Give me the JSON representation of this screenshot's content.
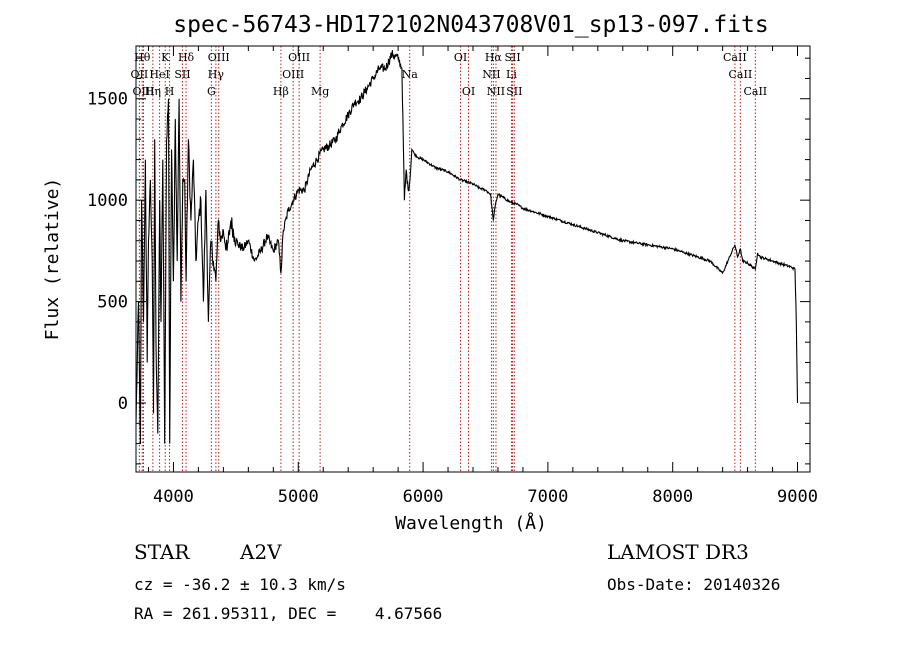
{
  "chart_data": {
    "type": "line",
    "title": "spec-56743-HD172102N043708V01_sp13-097.fits",
    "xlabel": "Wavelength (Å)",
    "ylabel": "Flux (relative)",
    "xlim": [
      3700,
      9100
    ],
    "ylim": [
      -340,
      1760
    ],
    "xticks": [
      4000,
      5000,
      6000,
      7000,
      8000,
      9000
    ],
    "yticks": [
      0,
      500,
      1000,
      1500
    ],
    "grid": false,
    "series": [
      {
        "name": "flux",
        "x": [
          3700,
          3720,
          3735,
          3745,
          3760,
          3775,
          3790,
          3800,
          3815,
          3830,
          3840,
          3850,
          3860,
          3875,
          3890,
          3900,
          3915,
          3930,
          3945,
          3960,
          3970,
          3985,
          4000,
          4015,
          4030,
          4045,
          4060,
          4075,
          4090,
          4101,
          4120,
          4140,
          4160,
          4180,
          4200,
          4220,
          4240,
          4260,
          4280,
          4300,
          4320,
          4340,
          4360,
          4380,
          4400,
          4430,
          4460,
          4490,
          4520,
          4560,
          4600,
          4650,
          4700,
          4750,
          4800,
          4840,
          4861,
          4880,
          4920,
          4960,
          5000,
          5050,
          5100,
          5150,
          5200,
          5250,
          5300,
          5350,
          5400,
          5450,
          5500,
          5550,
          5600,
          5650,
          5700,
          5750,
          5800,
          5830,
          5850,
          5865,
          5880,
          5895,
          5910,
          5930,
          5960,
          6000,
          6050,
          6100,
          6150,
          6200,
          6250,
          6300,
          6350,
          6400,
          6450,
          6500,
          6540,
          6563,
          6580,
          6600,
          6650,
          6700,
          6750,
          6800,
          6850,
          6900,
          6950,
          7000,
          7100,
          7200,
          7300,
          7400,
          7500,
          7600,
          7700,
          7800,
          7900,
          8000,
          8100,
          8200,
          8300,
          8400,
          8498,
          8520,
          8542,
          8560,
          8600,
          8662,
          8680,
          8700,
          8750,
          8800,
          8850,
          8900,
          8950,
          8980,
          8990,
          9000
        ],
        "y": [
          -100,
          500,
          -200,
          1000,
          400,
          1200,
          200,
          800,
          1100,
          700,
          -50,
          1300,
          300,
          -150,
          1000,
          400,
          1200,
          -200,
          1300,
          1500,
          -200,
          1250,
          600,
          1400,
          700,
          1500,
          500,
          1100,
          1100,
          600,
          1300,
          900,
          1200,
          700,
          900,
          1000,
          500,
          1050,
          400,
          800,
          700,
          600,
          900,
          800,
          850,
          750,
          900,
          820,
          780,
          760,
          800,
          700,
          750,
          820,
          750,
          800,
          640,
          850,
          950,
          1000,
          1050,
          1050,
          1150,
          1200,
          1250,
          1270,
          1300,
          1370,
          1420,
          1480,
          1500,
          1550,
          1600,
          1650,
          1650,
          1720,
          1700,
          1650,
          1000,
          1150,
          1050,
          1100,
          1250,
          1230,
          1210,
          1200,
          1180,
          1160,
          1150,
          1140,
          1120,
          1100,
          1090,
          1080,
          1060,
          1050,
          1030,
          900,
          980,
          1030,
          1010,
          990,
          980,
          960,
          950,
          940,
          930,
          920,
          900,
          880,
          860,
          840,
          820,
          800,
          790,
          780,
          770,
          760,
          740,
          720,
          700,
          640,
          780,
          720,
          760,
          700,
          690,
          660,
          740,
          720,
          710,
          700,
          690,
          680,
          670,
          660,
          400,
          0
        ]
      }
    ],
    "lines": [
      {
        "name": "OII",
        "x": 3727,
        "row": 2
      },
      {
        "name": "Hθ",
        "x": 3750,
        "row": 1
      },
      {
        "name": "OIII",
        "x": 3760,
        "row": 3
      },
      {
        "name": "Hη",
        "x": 3835,
        "row": 3
      },
      {
        "name": "HeI",
        "x": 3889,
        "row": 2
      },
      {
        "name": "K",
        "x": 3934,
        "row": 1
      },
      {
        "name": "H",
        "x": 3969,
        "row": 3
      },
      {
        "name": "SII",
        "x": 4072,
        "row": 2
      },
      {
        "name": "Hδ",
        "x": 4101,
        "row": 1
      },
      {
        "name": "G",
        "x": 4304,
        "row": 3
      },
      {
        "name": "Hγ",
        "x": 4340,
        "row": 2
      },
      {
        "name": "OIII",
        "x": 4363,
        "row": 1
      },
      {
        "name": "Hβ",
        "x": 4861,
        "row": 3
      },
      {
        "name": "OIII",
        "x": 4959,
        "row": 2
      },
      {
        "name": "OIII",
        "x": 5007,
        "row": 1
      },
      {
        "name": "Mg",
        "x": 5175,
        "row": 3
      },
      {
        "name": "Na",
        "x": 5893,
        "row": 2
      },
      {
        "name": "OI",
        "x": 6300,
        "row": 1
      },
      {
        "name": "OI",
        "x": 6364,
        "row": 3
      },
      {
        "name": "NII",
        "x": 6548,
        "row": 2
      },
      {
        "name": "Hα",
        "x": 6563,
        "row": 1
      },
      {
        "name": "NII",
        "x": 6584,
        "row": 3
      },
      {
        "name": "SII",
        "x": 6717,
        "row": 1
      },
      {
        "name": "Li",
        "x": 6708,
        "row": 2
      },
      {
        "name": "SII",
        "x": 6731,
        "row": 3
      },
      {
        "name": "CaII",
        "x": 8498,
        "row": 1
      },
      {
        "name": "CaII",
        "x": 8542,
        "row": 2
      },
      {
        "name": "CaII",
        "x": 8662,
        "row": 3
      }
    ]
  },
  "info": {
    "class": "STAR",
    "subclass": "A2V",
    "survey": "LAMOST DR3",
    "cz": "cz = -36.2 ± 10.3 km/s",
    "obs_date": "Obs-Date: 20140326",
    "coords": "RA = 261.95311, DEC =    4.67566"
  },
  "colors": {
    "line": "#000000",
    "marker": "#b22222"
  }
}
